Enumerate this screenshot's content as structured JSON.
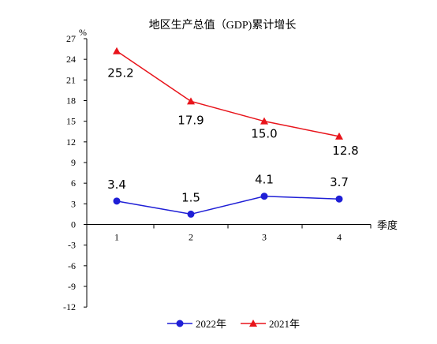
{
  "chart_data": {
    "type": "line",
    "title": "地区生产总值（GDP)累计增长",
    "ylabel": "%",
    "xlabel": "季度",
    "categories": [
      "1",
      "2",
      "3",
      "4"
    ],
    "ylim": [
      -12,
      27
    ],
    "yticks": [
      27,
      24,
      21,
      18,
      15,
      12,
      9,
      6,
      3,
      0,
      -3,
      -6,
      -9,
      -12
    ],
    "legend_position": "bottom",
    "series": [
      {
        "name": "2022年",
        "values": [
          3.4,
          1.5,
          4.1,
          3.7
        ],
        "labels": [
          "3.4",
          "1.5",
          "4.1",
          "3.7"
        ],
        "color": "#1f1fd6",
        "marker": "circle"
      },
      {
        "name": "2021年",
        "values": [
          25.2,
          17.9,
          15.0,
          12.8
        ],
        "labels": [
          "25.2",
          "17.9",
          "15.0",
          "12.8"
        ],
        "color": "#e8141b",
        "marker": "triangle"
      }
    ]
  }
}
